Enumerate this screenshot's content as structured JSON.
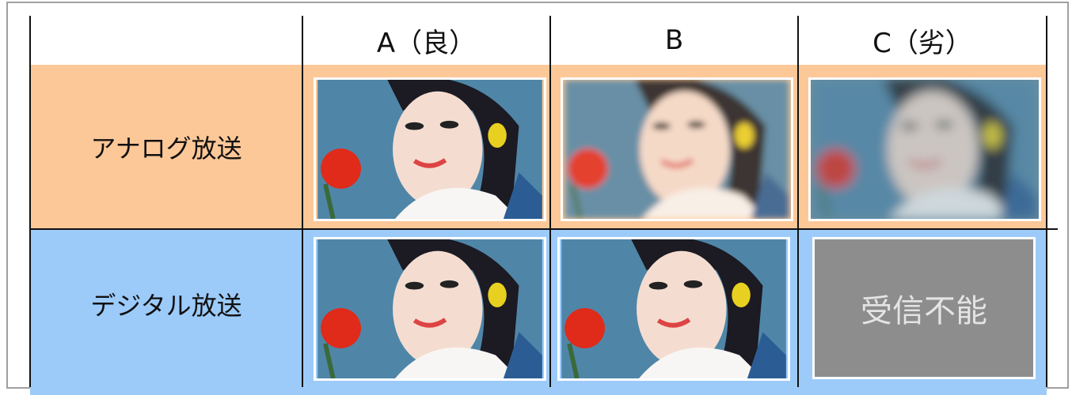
{
  "table": {
    "columns": [
      "A（良）",
      "B",
      "C（劣）"
    ],
    "rows": [
      {
        "label": "アナログ放送"
      },
      {
        "label": "デジタル放送",
        "no_signal": "受信不能"
      }
    ]
  }
}
